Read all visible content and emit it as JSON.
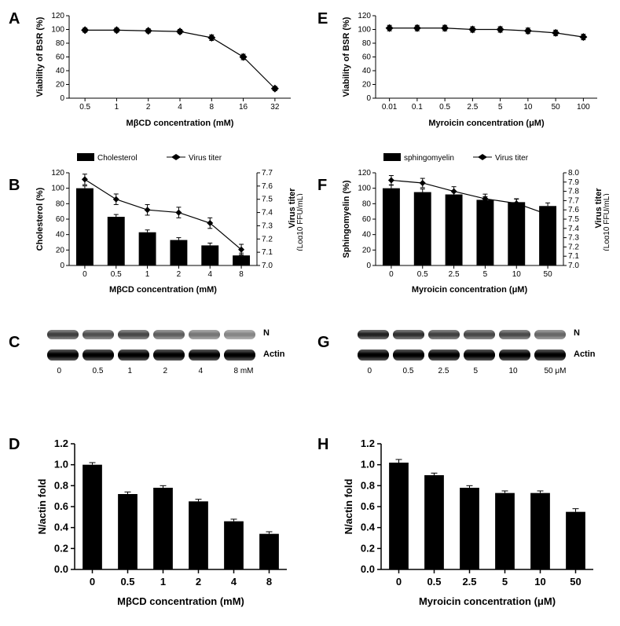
{
  "panelLabels": {
    "A": "A",
    "B": "B",
    "C": "C",
    "D": "D",
    "E": "E",
    "F": "F",
    "G": "G",
    "H": "H"
  },
  "colors": {
    "bar": "#000000",
    "line": "#000000",
    "marker": "#000000",
    "axis": "#000000",
    "bg": "#ffffff",
    "blotN": "#555555",
    "blotActin": "#222222"
  },
  "A": {
    "type": "line",
    "x_categories": [
      "0.5",
      "1",
      "2",
      "4",
      "8",
      "16",
      "32"
    ],
    "y": [
      99,
      99,
      98,
      97,
      88,
      60,
      14
    ],
    "yerr": [
      3,
      3,
      3,
      3,
      4,
      4,
      3
    ],
    "xlabel": "MβCD concentration (mM)",
    "ylabel": "Viability of BSR (%)",
    "ylim": [
      0,
      120
    ],
    "ytick_step": 20,
    "marker": "diamond",
    "line_width": 1.2,
    "marker_size": 5
  },
  "E": {
    "type": "line",
    "x_categories": [
      "0.01",
      "0.1",
      "0.5",
      "2.5",
      "5",
      "10",
      "50",
      "100"
    ],
    "y": [
      102,
      102,
      102,
      100,
      100,
      98,
      95,
      89
    ],
    "yerr": [
      4,
      4,
      4,
      4,
      4,
      4,
      4,
      4
    ],
    "xlabel": "Myroicin concentration (μM)",
    "ylabel": "Viability of BSR (%)",
    "ylim": [
      0,
      120
    ],
    "ytick_step": 20,
    "marker": "diamond",
    "line_width": 1.2,
    "marker_size": 5
  },
  "B": {
    "type": "bar+line",
    "x_categories": [
      "0",
      "0.5",
      "1",
      "2",
      "4",
      "8"
    ],
    "bar_y": [
      100,
      63,
      43,
      33,
      26,
      13
    ],
    "bar_yerr": [
      3,
      3,
      3,
      3,
      3,
      3
    ],
    "line_y": [
      7.65,
      7.5,
      7.42,
      7.4,
      7.32,
      7.12
    ],
    "line_yerr": [
      0.04,
      0.04,
      0.04,
      0.04,
      0.04,
      0.04
    ],
    "xlabel": "MβCD concentration (mM)",
    "ylabel_left": "Cholesterol (%)",
    "ylabel_right_line1": "Virus titer",
    "ylabel_right_line2": "(Log10 FFU/mL)",
    "ylim_left": [
      0,
      120
    ],
    "ytick_left_step": 20,
    "ylim_right": [
      7.0,
      7.7
    ],
    "ytick_right_step": 0.1,
    "legend_bar": "Cholesterol",
    "legend_line": "Virus titer",
    "bar_width": 0.55
  },
  "F": {
    "type": "bar+line",
    "x_categories": [
      "0",
      "0.5",
      "2.5",
      "5",
      "10",
      "50"
    ],
    "bar_y": [
      100,
      95,
      92,
      85,
      82,
      77
    ],
    "bar_yerr": [
      4,
      4,
      4,
      4,
      4,
      4
    ],
    "line_y": [
      7.92,
      7.89,
      7.8,
      7.72,
      7.67,
      7.55
    ],
    "line_yerr": [
      0.05,
      0.05,
      0.05,
      0.05,
      0.05,
      0.05
    ],
    "xlabel": "Myroicin concentration (μM)",
    "ylabel_left": "Sphingomyelin (%)",
    "ylabel_right_line1": "Virus titer",
    "ylabel_right_line2": "(Log10 FFU/mL)",
    "ylim_left": [
      0,
      120
    ],
    "ytick_left_step": 20,
    "ylim_right": [
      7.0,
      8.0
    ],
    "ytick_right_step": 0.1,
    "legend_bar": "sphingomyelin",
    "legend_line": "Virus titer",
    "bar_width": 0.55
  },
  "C": {
    "type": "western_blot",
    "lanes": [
      "0",
      "0.5",
      "1",
      "2",
      "4",
      "8 mM"
    ],
    "row1_label": "N",
    "row2_label": "Actin",
    "row1_intensity": [
      0.8,
      0.7,
      0.75,
      0.6,
      0.45,
      0.35
    ],
    "row2_intensity": [
      1,
      1,
      1,
      1,
      1,
      1
    ]
  },
  "G": {
    "type": "western_blot",
    "lanes": [
      "0",
      "0.5",
      "2.5",
      "5",
      "10",
      "50  μM"
    ],
    "row1_label": "N",
    "row2_label": "Actin",
    "row1_intensity": [
      1,
      0.9,
      0.8,
      0.75,
      0.73,
      0.55
    ],
    "row2_intensity": [
      1,
      1,
      1,
      1,
      1,
      1
    ]
  },
  "D": {
    "type": "bar",
    "x_categories": [
      "0",
      "0.5",
      "1",
      "2",
      "4",
      "8"
    ],
    "y": [
      1.0,
      0.72,
      0.78,
      0.65,
      0.46,
      0.34
    ],
    "yerr": [
      0.02,
      0.02,
      0.02,
      0.02,
      0.02,
      0.02
    ],
    "xlabel": "MβCD concentration (mM)",
    "ylabel": "N/actin fold",
    "ylim": [
      0,
      1.2
    ],
    "ytick_step": 0.2,
    "bar_width": 0.55
  },
  "H": {
    "type": "bar",
    "x_categories": [
      "0",
      "0.5",
      "2.5",
      "5",
      "10",
      "50"
    ],
    "y": [
      1.02,
      0.9,
      0.78,
      0.73,
      0.73,
      0.55
    ],
    "yerr": [
      0.03,
      0.02,
      0.02,
      0.02,
      0.02,
      0.03
    ],
    "xlabel": "Myroicin concentration (μM)",
    "ylabel": "N/actin fold",
    "ylim": [
      0,
      1.2
    ],
    "ytick_step": 0.2,
    "bar_width": 0.55
  }
}
